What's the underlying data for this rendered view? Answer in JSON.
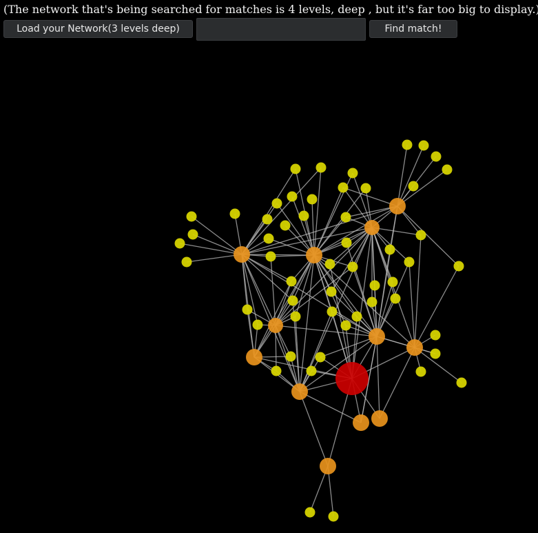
{
  "header": {
    "note": "(The network that's being searched for matches is 4 levels, deep , but it's far too big to display.)"
  },
  "toolbar": {
    "load_label": "Load your Network(3 levels deep)",
    "query_value": "",
    "find_label": "Find match!"
  },
  "colors": {
    "background": "#000000",
    "leaf_node": "#d6d300",
    "hub_node": "#e8921c",
    "match_node": "#cc0000",
    "edge": "#b9b9b9"
  }
}
